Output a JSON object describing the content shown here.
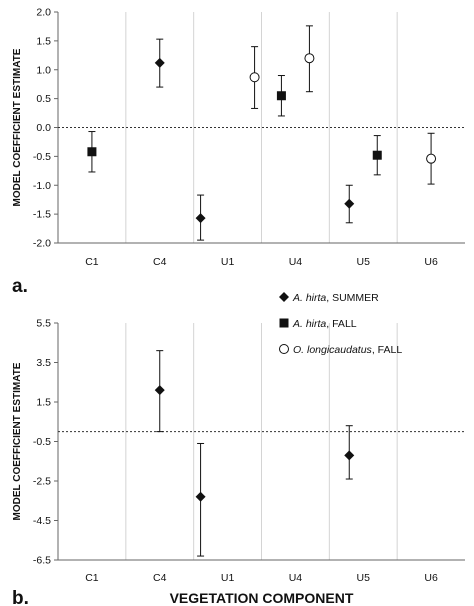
{
  "chart_data": [
    {
      "type": "scatter",
      "panel_label": "a.",
      "ylabel": "MODEL COEFFICIENT ESTIMATE",
      "xlabel": "",
      "categories": [
        "C1",
        "C4",
        "U1",
        "U4",
        "U5",
        "U6"
      ],
      "ylim": [
        -2.0,
        2.0
      ],
      "yticks": [
        "2.0",
        "1.5",
        "1.0",
        "0.5",
        "0.0",
        "-0.5",
        "-1.0",
        "-1.5",
        "-2.0"
      ],
      "ytick_values": [
        2.0,
        1.5,
        1.0,
        0.5,
        0.0,
        -0.5,
        -1.0,
        -1.5,
        -2.0
      ],
      "reference_line": 0.0,
      "vertical_grid": true,
      "series": [
        {
          "name": "A. hirta, SUMMER",
          "marker": "diamond",
          "points": [
            {
              "category": "C4",
              "y": 1.12,
              "low": 0.7,
              "high": 1.53
            },
            {
              "category": "U1",
              "y": -1.57,
              "low": -1.95,
              "high": -1.17
            },
            {
              "category": "U5",
              "y": -1.32,
              "low": -1.65,
              "high": -1.0
            }
          ]
        },
        {
          "name": "A. hirta, FALL",
          "marker": "square",
          "points": [
            {
              "category": "C1",
              "y": -0.42,
              "low": -0.77,
              "high": -0.07
            },
            {
              "category": "U4",
              "y": 0.55,
              "low": 0.2,
              "high": 0.9
            },
            {
              "category": "U5",
              "y": -0.48,
              "low": -0.82,
              "high": -0.14
            }
          ]
        },
        {
          "name": "O. longicaudatus, FALL",
          "marker": "circle-open",
          "points": [
            {
              "category": "U1",
              "y": 0.87,
              "low": 0.33,
              "high": 1.4
            },
            {
              "category": "U4",
              "y": 1.2,
              "low": 0.62,
              "high": 1.76
            },
            {
              "category": "U6",
              "y": -0.54,
              "low": -0.98,
              "high": -0.1
            }
          ]
        }
      ]
    },
    {
      "type": "scatter",
      "panel_label": "b.",
      "ylabel": "MODEL COEFFICIENT ESTIMATE",
      "xlabel": "VEGETATION COMPONENT",
      "categories": [
        "C1",
        "C4",
        "U1",
        "U4",
        "U5",
        "U6"
      ],
      "ylim": [
        -6.5,
        5.5
      ],
      "yticks": [
        "5.5",
        "3.5",
        "1.5",
        "-0.5",
        "-2.5",
        "-4.5",
        "-6.5"
      ],
      "ytick_values": [
        5.5,
        3.5,
        1.5,
        -0.5,
        -2.5,
        -4.5,
        -6.5
      ],
      "reference_line": 0.0,
      "vertical_grid": true,
      "series": [
        {
          "name": "A. hirta, SUMMER",
          "marker": "diamond",
          "points": [
            {
              "category": "C4",
              "y": 2.1,
              "low": 0.0,
              "high": 4.1
            },
            {
              "category": "U1",
              "y": -3.3,
              "low": -6.3,
              "high": -0.6
            },
            {
              "category": "U5",
              "y": -1.2,
              "low": -2.4,
              "high": 0.3
            }
          ]
        }
      ]
    }
  ],
  "legend": {
    "entries": [
      {
        "marker": "diamond",
        "italic": "A. hirta",
        "rest": ", SUMMER"
      },
      {
        "marker": "square",
        "italic": "A. hirta",
        "rest": ", FALL"
      },
      {
        "marker": "circle-open",
        "italic": "O. longicaudatus",
        "rest": ", FALL"
      }
    ]
  }
}
